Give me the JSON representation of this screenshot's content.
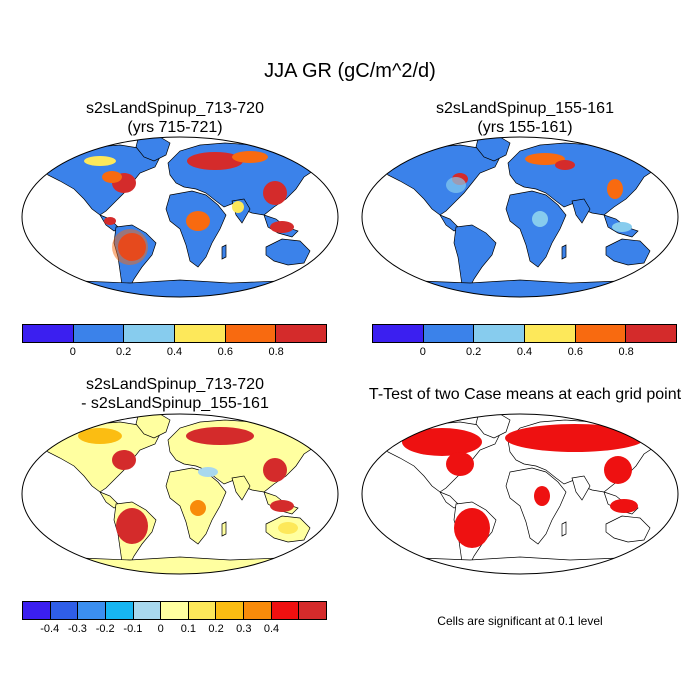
{
  "title": "JJA GR (gC/m^2/d)",
  "panels": [
    {
      "title": "s2sLandSpinup_713-720\n(yrs 715-721)"
    },
    {
      "title": "s2sLandSpinup_155-161\n(yrs 155-161)"
    },
    {
      "title": "s2sLandSpinup_713-720\n- s2sLandSpinup_155-161"
    },
    {
      "title": "T-Test of two Case means at each grid point"
    }
  ],
  "colorbar_abs": {
    "colors": [
      "#3b1ff0",
      "#3b82ea",
      "#87ccee",
      "#fde85a",
      "#f86a10",
      "#d42b2b"
    ],
    "ticks": [
      "0",
      "0.2",
      "0.4",
      "0.6",
      "0.8"
    ]
  },
  "colorbar_diff": {
    "colors": [
      "#3b1ff0",
      "#2f5ee8",
      "#3b8ff0",
      "#17b6f2",
      "#a8d8ee",
      "#ffffa0",
      "#fde85a",
      "#fbbd12",
      "#f88b0a",
      "#f01010",
      "#d42b2b"
    ],
    "ticks": [
      "-0.4",
      "-0.3",
      "-0.2",
      "-0.1",
      "0",
      "0.1",
      "0.2",
      "0.3",
      "0.4"
    ]
  },
  "significance_note": "Cells are significant at 0.1 level",
  "map_colors": {
    "ocean": "#ffffff",
    "land_abs_base": "#3b82ea",
    "antarctica_abs": "#3b82ea",
    "antarctica_diff": "#ffffa0",
    "signif": "#ee1111"
  }
}
